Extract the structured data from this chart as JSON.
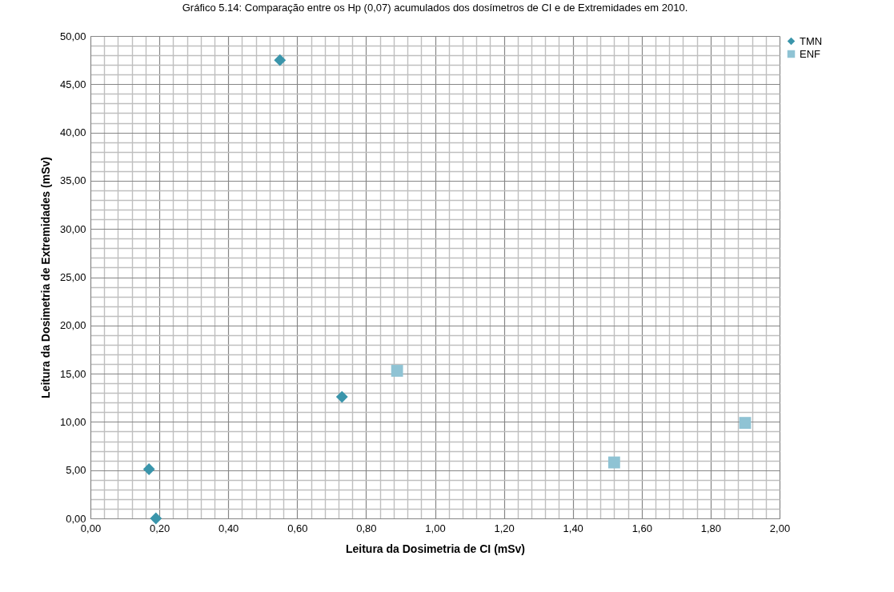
{
  "chart_data": {
    "type": "scatter",
    "title": "Gráfico 5.14: Comparação entre os Hp (0,07) acumulados dos dosímetros de CI e de Extremidades em 2010.",
    "xlabel": "Leitura da Dosimetria de CI (mSv)",
    "ylabel": "Leitura da Dosimetria de Extremidades (mSv)",
    "series": [
      {
        "name": "TMN",
        "color": "#3a95ab",
        "marker": "diamond",
        "x": [
          0.17,
          0.19,
          0.55,
          0.73
        ],
        "values": [
          5.1,
          0,
          47.5,
          12.6
        ]
      },
      {
        "name": "ENF",
        "color": "#8fc3d4",
        "marker": "square",
        "x": [
          0.89,
          1.52,
          1.9
        ],
        "values": [
          15.3,
          5.8,
          9.9
        ]
      }
    ],
    "xlim": [
      0,
      2
    ],
    "ylim": [
      0,
      50
    ],
    "xticks": [
      {
        "value": 0,
        "label": "0,00"
      },
      {
        "value": 0.2,
        "label": "0,20"
      },
      {
        "value": 0.4,
        "label": "0,40"
      },
      {
        "value": 0.6,
        "label": "0,60"
      },
      {
        "value": 0.8,
        "label": "0,80"
      },
      {
        "value": 1,
        "label": "1,00"
      },
      {
        "value": 1.2,
        "label": "1,20"
      },
      {
        "value": 1.4,
        "label": "1,40"
      },
      {
        "value": 1.6,
        "label": "1,60"
      },
      {
        "value": 1.8,
        "label": "1,80"
      },
      {
        "value": 2,
        "label": "2,00"
      }
    ],
    "yticks": [
      {
        "value": 0,
        "label": "0,00"
      },
      {
        "value": 5,
        "label": "5,00"
      },
      {
        "value": 10,
        "label": "10,00"
      },
      {
        "value": 15,
        "label": "15,00"
      },
      {
        "value": 20,
        "label": "20,00"
      },
      {
        "value": 25,
        "label": "25,00"
      },
      {
        "value": 30,
        "label": "30,00"
      },
      {
        "value": 35,
        "label": "35,00"
      },
      {
        "value": 40,
        "label": "40,00"
      },
      {
        "value": 45,
        "label": "45,00"
      },
      {
        "value": 50,
        "label": "50,00"
      }
    ],
    "grid": true,
    "legend": "right"
  }
}
